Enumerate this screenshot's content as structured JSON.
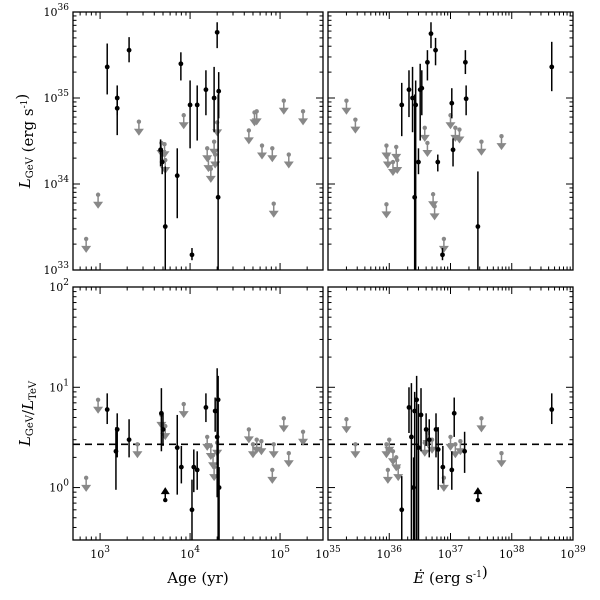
{
  "colors": {
    "detection": "#000000",
    "upper_limit": "#888888",
    "reference_line": "#000000"
  },
  "chart_data": [
    {
      "type": "scatter",
      "panel": "top-left",
      "xlabel": "",
      "ylabel": "L_GeV (erg s^-1)",
      "xscale": "log",
      "yscale": "log",
      "xlim": [
        500,
        300000
      ],
      "ylim": [
        1e+33,
        1e+36
      ],
      "x_tick_labels": [],
      "y_tick_labels": [
        "10^33",
        "10^34",
        "10^35",
        "10^36"
      ],
      "detections": [
        {
          "x": 1200,
          "y": 2.3e+35,
          "lo": 1.1e+35,
          "hi": 4.3e+35
        },
        {
          "x": 1550,
          "y": 1e+35,
          "lo": 6.3e+34,
          "hi": 1.4e+35
        },
        {
          "x": 1550,
          "y": 7.6e+34,
          "lo": 3.7e+34,
          "hi": 1.1e+35
        },
        {
          "x": 2100,
          "y": 3.6e+35,
          "lo": 2.6e+35,
          "hi": 5.1e+35
        },
        {
          "x": 4700,
          "y": 2.5e+34,
          "lo": 1.6e+34,
          "hi": 3.3e+34
        },
        {
          "x": 4900,
          "y": 1.8e+34,
          "lo": 1.3e+34,
          "hi": 2.6e+34
        },
        {
          "x": 5300,
          "y": 3.2e+33,
          "lo": 1e+33,
          "hi": 1.6e+34
        },
        {
          "x": 7200,
          "y": 1.25e+34,
          "lo": 4e+33,
          "hi": 2.6e+34
        },
        {
          "x": 7900,
          "y": 2.5e+35,
          "lo": 1.6e+35,
          "hi": 3.4e+35
        },
        {
          "x": 10000,
          "y": 8.3e+34,
          "lo": 2.6e+34,
          "hi": 1.6e+35
        },
        {
          "x": 10500,
          "y": 1.5e+33,
          "lo": 1.3e+33,
          "hi": 1.8e+33
        },
        {
          "x": 12000,
          "y": 8.3e+34,
          "lo": 3.2e+34,
          "hi": 1.4e+35
        },
        {
          "x": 15000,
          "y": 1.25e+35,
          "lo": 6.3e+34,
          "hi": 2.1e+35
        },
        {
          "x": 18500,
          "y": 1e+35,
          "lo": 4e+34,
          "hi": 2.3e+35
        },
        {
          "x": 20000,
          "y": 5.8e+35,
          "lo": 3.8e+35,
          "hi": 7.6e+35
        },
        {
          "x": 20800,
          "y": 1.2e+35,
          "lo": 5.8e+34,
          "hi": 2e+35
        },
        {
          "x": 20500,
          "y": 7e+33,
          "lo": 1e+33,
          "hi": 1.1e+35
        }
      ],
      "upper_limits": [
        {
          "x": 700,
          "y": 2.3e+33
        },
        {
          "x": 950,
          "y": 7.5e+33
        },
        {
          "x": 2700,
          "y": 5.3e+34
        },
        {
          "x": 4800,
          "y": 3e+34
        },
        {
          "x": 5200,
          "y": 2.9e+34
        },
        {
          "x": 5300,
          "y": 1.9e+34
        },
        {
          "x": 8500,
          "y": 6.3e+34
        },
        {
          "x": 15500,
          "y": 2.6e+34
        },
        {
          "x": 16000,
          "y": 2e+34
        },
        {
          "x": 17000,
          "y": 1.5e+34
        },
        {
          "x": 18500,
          "y": 3.1e+34
        },
        {
          "x": 19000,
          "y": 2.2e+34
        },
        {
          "x": 20000,
          "y": 5.2e+34
        },
        {
          "x": 45000,
          "y": 4.2e+34
        },
        {
          "x": 52000,
          "y": 6.8e+34
        },
        {
          "x": 55000,
          "y": 7e+34
        },
        {
          "x": 63000,
          "y": 2.8e+34
        },
        {
          "x": 82000,
          "y": 2.6e+34
        },
        {
          "x": 85000,
          "y": 5.9e+33
        },
        {
          "x": 110000,
          "y": 9.3e+34
        },
        {
          "x": 125000,
          "y": 2.2e+34
        },
        {
          "x": 180000,
          "y": 7e+34
        }
      ]
    },
    {
      "type": "scatter",
      "panel": "top-right",
      "xlabel": "",
      "ylabel": "",
      "xscale": "log",
      "yscale": "log",
      "xlim": [
        1e+35,
        1e+39
      ],
      "ylim": [
        1e+33,
        1e+36
      ],
      "x_tick_labels": [],
      "y_tick_labels": [],
      "detections": [
        {
          "x": 1.6e+36,
          "y": 8.3e+34,
          "lo": 3.6e+34,
          "hi": 1.5e+35
        },
        {
          "x": 2.1e+36,
          "y": 1.25e+35,
          "lo": 6e+34,
          "hi": 2.1e+35
        },
        {
          "x": 2.4e+36,
          "y": 1e+35,
          "lo": 4e+34,
          "hi": 2.3e+35
        },
        {
          "x": 2.6e+36,
          "y": 7e+33,
          "lo": 1e+33,
          "hi": 1.1e+35
        },
        {
          "x": 2.7e+36,
          "y": 8.3e+34,
          "lo": 1e+33,
          "hi": 1.6e+35
        },
        {
          "x": 3e+36,
          "y": 1.8e+34,
          "lo": 1.3e+34,
          "hi": 2.6e+34
        },
        {
          "x": 3.2e+36,
          "y": 1.25e+35,
          "lo": 3.2e+34,
          "hi": 2.5e+35
        },
        {
          "x": 3.4e+36,
          "y": 1.3e+35,
          "lo": 6.3e+34,
          "hi": 2.1e+35
        },
        {
          "x": 4.2e+36,
          "y": 2.6e+35,
          "lo": 1.6e+35,
          "hi": 3.6e+35
        },
        {
          "x": 4.8e+36,
          "y": 5.6e+35,
          "lo": 3.8e+35,
          "hi": 7.6e+35
        },
        {
          "x": 5.7e+36,
          "y": 3.6e+35,
          "lo": 2.4e+35,
          "hi": 5e+35
        },
        {
          "x": 6.2e+36,
          "y": 1.8e+34,
          "lo": 1.4e+34,
          "hi": 2.2e+34
        },
        {
          "x": 7.4e+36,
          "y": 1.5e+33,
          "lo": 1.3e+33,
          "hi": 1.8e+33
        },
        {
          "x": 1.05e+37,
          "y": 8.7e+34,
          "lo": 5.8e+34,
          "hi": 1.3e+35
        },
        {
          "x": 1.1e+37,
          "y": 2.5e+34,
          "lo": 1.6e+34,
          "hi": 3.4e+34
        },
        {
          "x": 1.75e+37,
          "y": 2.6e+35,
          "lo": 1.9e+35,
          "hi": 3.6e+35
        },
        {
          "x": 1.8e+37,
          "y": 9.8e+34,
          "lo": 6.3e+34,
          "hi": 1.4e+35
        },
        {
          "x": 2.8e+37,
          "y": 3.2e+33,
          "lo": 1e+33,
          "hi": 1.4e+34
        },
        {
          "x": 4.5e+38,
          "y": 2.3e+35,
          "lo": 1.2e+35,
          "hi": 4.5e+35
        }
      ],
      "upper_limits": [
        {
          "x": 2e+35,
          "y": 9.3e+34
        },
        {
          "x": 2.8e+35,
          "y": 5.6e+34
        },
        {
          "x": 9e+35,
          "y": 2.8e+34
        },
        {
          "x": 9.5e+35,
          "y": 2.2e+34
        },
        {
          "x": 9e+35,
          "y": 5.8e+33
        },
        {
          "x": 1.15e+36,
          "y": 1.8e+34
        },
        {
          "x": 1.3e+36,
          "y": 2.7e+34
        },
        {
          "x": 1.35e+36,
          "y": 1.9e+34
        },
        {
          "x": 3.8e+36,
          "y": 4.5e+34
        },
        {
          "x": 4.2e+36,
          "y": 3e+34
        },
        {
          "x": 5.2e+36,
          "y": 7.6e+33
        },
        {
          "x": 5.5e+36,
          "y": 5.5e+33
        },
        {
          "x": 7.8e+36,
          "y": 2.3e+33
        },
        {
          "x": 1e+37,
          "y": 6.3e+34
        },
        {
          "x": 1.2e+37,
          "y": 4.5e+34
        },
        {
          "x": 1.4e+37,
          "y": 4.3e+34
        },
        {
          "x": 3.2e+37,
          "y": 3.1e+34
        },
        {
          "x": 6.8e+37,
          "y": 3.6e+34
        }
      ]
    },
    {
      "type": "scatter",
      "panel": "bottom-left",
      "xlabel": "Age (yr)",
      "ylabel": "L_GeV/L_TeV",
      "xscale": "log",
      "yscale": "log",
      "xlim": [
        500,
        300000
      ],
      "ylim": [
        0.3,
        100
      ],
      "x_tick_labels": [
        "10^3",
        "10^4",
        "10^5"
      ],
      "y_tick_labels": [
        "10^0",
        "10^1",
        "10^2"
      ],
      "reference_line": 2.7,
      "detections": [
        {
          "x": 1200,
          "y": 6.0,
          "lo": 4.3,
          "hi": 8.7
        },
        {
          "x": 1500,
          "y": 2.3,
          "lo": 0.95,
          "hi": 4.0
        },
        {
          "x": 1550,
          "y": 3.8,
          "lo": 2.0,
          "hi": 5.5
        },
        {
          "x": 2100,
          "y": 3.0,
          "lo": 2.0,
          "hi": 4.8
        },
        {
          "x": 4800,
          "y": 5.5,
          "lo": 2.3,
          "hi": 9.8
        },
        {
          "x": 5000,
          "y": 3.8,
          "lo": 2.6,
          "hi": 5.5
        },
        {
          "x": 7200,
          "y": 2.5,
          "lo": 0.85,
          "hi": 5.3
        },
        {
          "x": 8000,
          "y": 1.6,
          "lo": 1.1,
          "hi": 2.6
        },
        {
          "x": 10500,
          "y": 0.6,
          "lo": 0.3,
          "hi": 1.2
        },
        {
          "x": 11000,
          "y": 1.6,
          "lo": 0.9,
          "hi": 2.4
        },
        {
          "x": 12000,
          "y": 1.5,
          "lo": 0.95,
          "hi": 2.3
        },
        {
          "x": 15000,
          "y": 6.3,
          "lo": 4.5,
          "hi": 8.7
        },
        {
          "x": 19000,
          "y": 5.8,
          "lo": 3.6,
          "hi": 7.9
        },
        {
          "x": 20000,
          "y": 3.2,
          "lo": 0.8,
          "hi": 15.5
        },
        {
          "x": 20500,
          "y": 7.5,
          "lo": 0.3,
          "hi": 13.0
        },
        {
          "x": 21000,
          "y": 1.0,
          "lo": 0.3,
          "hi": 1.6
        }
      ],
      "lower_limits": [
        {
          "x": 5300,
          "y": 0.75
        }
      ],
      "upper_limits": [
        {
          "x": 700,
          "y": 1.25
        },
        {
          "x": 950,
          "y": 7.5
        },
        {
          "x": 2600,
          "y": 2.7
        },
        {
          "x": 4800,
          "y": 5.3
        },
        {
          "x": 5300,
          "y": 4.1
        },
        {
          "x": 8500,
          "y": 6.8
        },
        {
          "x": 15500,
          "y": 3.2
        },
        {
          "x": 17000,
          "y": 2.6
        },
        {
          "x": 18000,
          "y": 2.1
        },
        {
          "x": 18500,
          "y": 1.6
        },
        {
          "x": 20000,
          "y": 2.8
        },
        {
          "x": 45000,
          "y": 3.8
        },
        {
          "x": 50000,
          "y": 2.7
        },
        {
          "x": 55000,
          "y": 3.0
        },
        {
          "x": 62000,
          "y": 2.9
        },
        {
          "x": 82000,
          "y": 1.5
        },
        {
          "x": 85000,
          "y": 2.7
        },
        {
          "x": 110000,
          "y": 4.9
        },
        {
          "x": 125000,
          "y": 2.2
        },
        {
          "x": 180000,
          "y": 3.6
        }
      ]
    },
    {
      "type": "scatter",
      "panel": "bottom-right",
      "xlabel": "Ė (erg s^-1)",
      "ylabel": "",
      "xscale": "log",
      "yscale": "log",
      "xlim": [
        1e+35,
        1e+39
      ],
      "ylim": [
        0.3,
        100
      ],
      "x_tick_labels": [
        "10^35",
        "10^36",
        "10^37",
        "10^38",
        "10^39"
      ],
      "y_tick_labels": [],
      "reference_line": 2.7,
      "detections": [
        {
          "x": 1.6e+36,
          "y": 0.6,
          "lo": 0.3,
          "hi": 1.3
        },
        {
          "x": 2.1e+36,
          "y": 6.3,
          "lo": 3.5,
          "hi": 10.0
        },
        {
          "x": 2.3e+36,
          "y": 3.2,
          "lo": 0.3,
          "hi": 11.0
        },
        {
          "x": 2.5e+36,
          "y": 1.0,
          "lo": 0.3,
          "hi": 2.0
        },
        {
          "x": 2.6e+36,
          "y": 5.8,
          "lo": 0.3,
          "hi": 9.0
        },
        {
          "x": 2.8e+36,
          "y": 7.5,
          "lo": 0.3,
          "hi": 13.0
        },
        {
          "x": 3e+36,
          "y": 2.5,
          "lo": 0.3,
          "hi": 6.8
        },
        {
          "x": 3.3e+36,
          "y": 5.3,
          "lo": 2.3,
          "hi": 9.8
        },
        {
          "x": 4e+36,
          "y": 3.8,
          "lo": 2.6,
          "hi": 5.5
        },
        {
          "x": 4.5e+36,
          "y": 3.0,
          "lo": 2.0,
          "hi": 4.8
        },
        {
          "x": 5.8e+36,
          "y": 3.8,
          "lo": 2.0,
          "hi": 5.5
        },
        {
          "x": 6.3e+36,
          "y": 2.4,
          "lo": 0.95,
          "hi": 4.0
        },
        {
          "x": 7.5e+36,
          "y": 1.6,
          "lo": 1.1,
          "hi": 2.6
        },
        {
          "x": 1.05e+37,
          "y": 1.5,
          "lo": 0.95,
          "hi": 2.3
        },
        {
          "x": 1.15e+37,
          "y": 5.5,
          "lo": 3.2,
          "hi": 7.9
        },
        {
          "x": 1.7e+37,
          "y": 2.3,
          "lo": 1.4,
          "hi": 3.6
        },
        {
          "x": 4.5e+38,
          "y": 6.0,
          "lo": 4.3,
          "hi": 8.7
        }
      ],
      "lower_limits": [
        {
          "x": 2.8e+37,
          "y": 0.75
        }
      ],
      "upper_limits": [
        {
          "x": 2e+35,
          "y": 4.8
        },
        {
          "x": 2.8e+35,
          "y": 2.7
        },
        {
          "x": 9e+35,
          "y": 2.7
        },
        {
          "x": 9.5e+35,
          "y": 1.5
        },
        {
          "x": 1e+36,
          "y": 3.0
        },
        {
          "x": 1.15e+36,
          "y": 2.3
        },
        {
          "x": 1.3e+36,
          "y": 2.0
        },
        {
          "x": 1.4e+36,
          "y": 1.6
        },
        {
          "x": 3.8e+36,
          "y": 2.8
        },
        {
          "x": 4.2e+36,
          "y": 3.5
        },
        {
          "x": 5e+36,
          "y": 3.0
        },
        {
          "x": 7.8e+36,
          "y": 1.25
        },
        {
          "x": 1e+37,
          "y": 3.2
        },
        {
          "x": 1.2e+37,
          "y": 2.7
        },
        {
          "x": 1.45e+37,
          "y": 2.9
        },
        {
          "x": 3.2e+37,
          "y": 4.9
        },
        {
          "x": 6.8e+37,
          "y": 2.2
        }
      ]
    }
  ]
}
